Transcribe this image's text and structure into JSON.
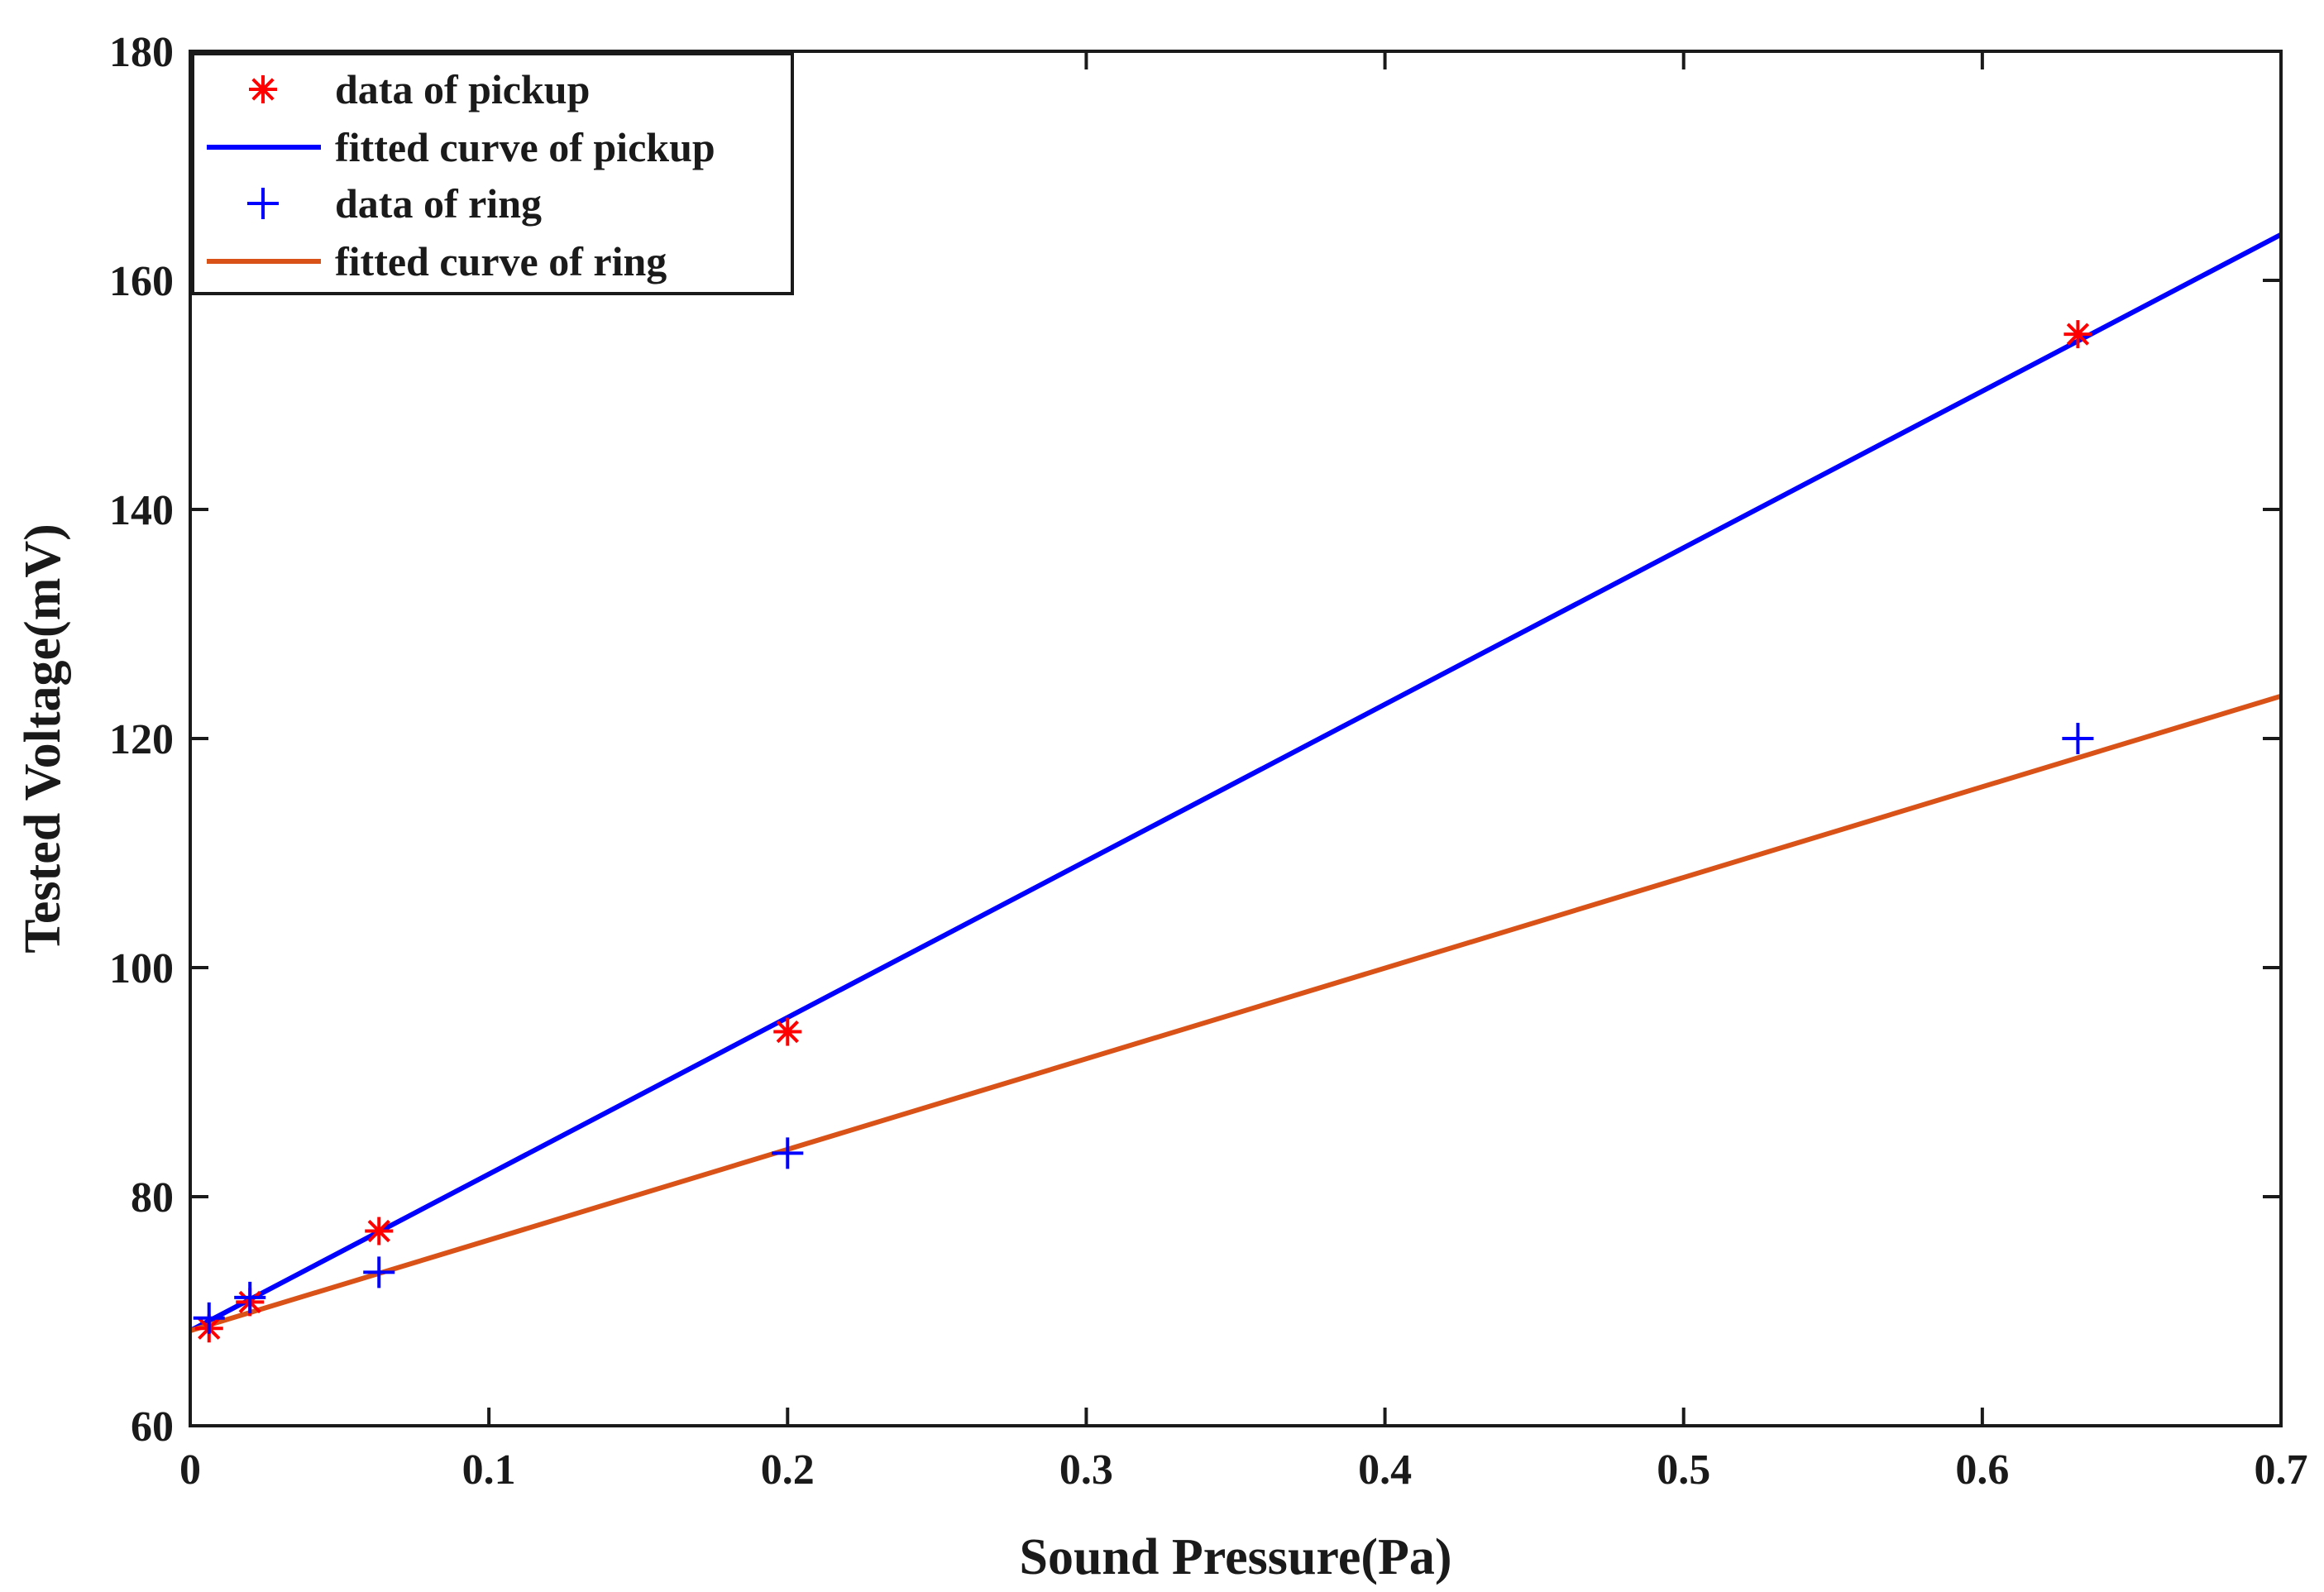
{
  "chart_data": {
    "type": "line",
    "title": "",
    "xlabel": "Sound Pressure(Pa)",
    "ylabel": "Tested Voltage(mV)",
    "xlim": [
      0,
      0.7
    ],
    "ylim": [
      60,
      180
    ],
    "xticks": [
      0,
      0.1,
      0.2,
      0.3,
      0.4,
      0.5,
      0.6,
      0.7
    ],
    "xtick_labels": [
      "0",
      "0.1",
      "0.2",
      "0.3",
      "0.4",
      "0.5",
      "0.6",
      "0.7"
    ],
    "yticks": [
      60,
      80,
      100,
      120,
      140,
      160,
      180
    ],
    "ytick_labels": [
      "60",
      "80",
      "100",
      "120",
      "140",
      "160",
      "180"
    ],
    "grid": false,
    "legend_position": "top-left",
    "series": [
      {
        "name": "data of pickup",
        "kind": "scatter",
        "marker": "asterisk",
        "color": "#ff0000",
        "x": [
          0.0063,
          0.02,
          0.0632,
          0.2,
          0.632
        ],
        "y": [
          68.5,
          70.8,
          77.0,
          94.4,
          155.3
        ]
      },
      {
        "name": "fitted curve of pickup",
        "kind": "line",
        "color": "#0000ff",
        "x": [
          0,
          0.7
        ],
        "y": [
          68.3,
          164.0
        ]
      },
      {
        "name": "data of ring",
        "kind": "scatter",
        "marker": "plus",
        "color": "#0000ff",
        "x": [
          0.0063,
          0.02,
          0.0632,
          0.2,
          0.632
        ],
        "y": [
          69.4,
          71.2,
          73.4,
          83.8,
          120.0
        ]
      },
      {
        "name": "fitted curve of ring",
        "kind": "line",
        "color": "#d95319",
        "x": [
          0,
          0.7
        ],
        "y": [
          68.3,
          123.7
        ]
      }
    ]
  }
}
